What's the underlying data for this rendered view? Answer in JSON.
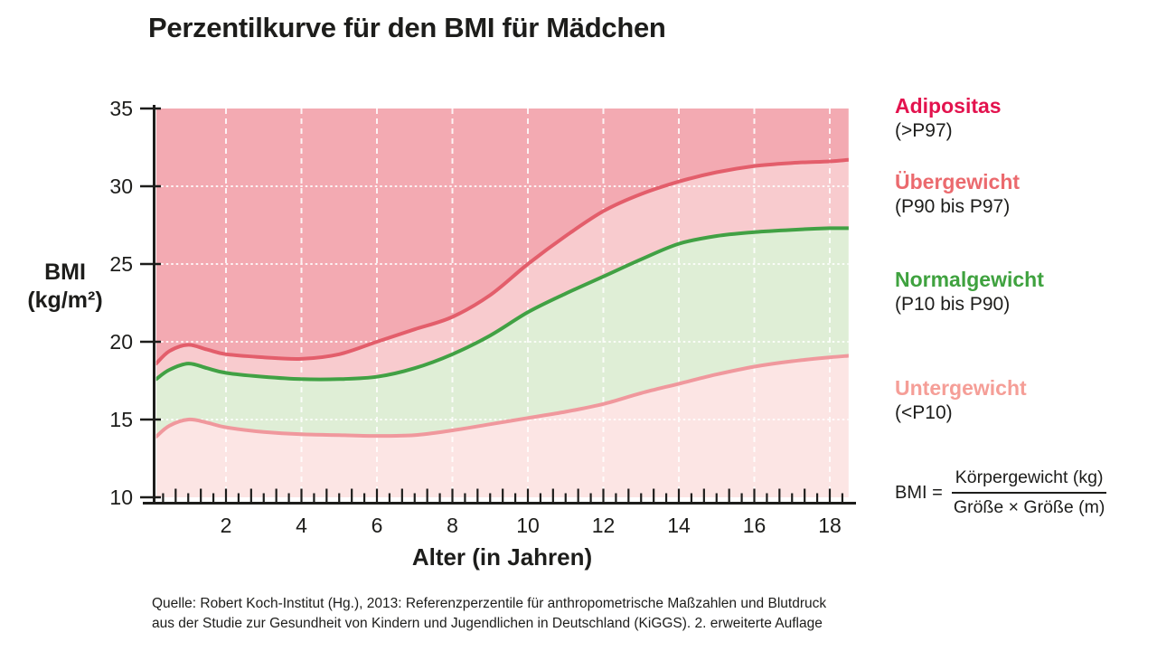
{
  "title": "Perzentilkurve für den BMI für Mädchen",
  "y_axis_label_line1": "BMI",
  "y_axis_label_line2": "(kg/m²)",
  "x_axis_label": "Alter (in Jahren)",
  "legend": {
    "items": [
      {
        "label": "Adipositas",
        "range": "(>P97)",
        "color": "#e3134e"
      },
      {
        "label": "Übergewicht",
        "range": "(P90 bis P97)",
        "color": "#eb6a6e"
      },
      {
        "label": "Normalgewicht",
        "range": "(P10 bis P90)",
        "color": "#3fa23f"
      },
      {
        "label": "Untergewicht",
        "range": "(<P10)",
        "color": "#f59e97"
      }
    ]
  },
  "formula": {
    "lhs": "BMI =",
    "numerator": "Körpergewicht (kg)",
    "denominator": "Größe × Größe (m)"
  },
  "source_line1": "Quelle: Robert Koch-Institut (Hg.), 2013: Referenzperzentile für anthropometrische Maßzahlen und Blutdruck",
  "source_line2": "aus der Studie zur Gesundheit von Kindern und Jugendlichen in Deutschland (KiGGS). 2. erweiterte Auflage",
  "chart_data": {
    "type": "area",
    "title": "Perzentilkurve für den BMI für Mädchen",
    "xlabel": "Alter (in Jahren)",
    "ylabel": "BMI (kg/m²)",
    "xlim": [
      0.15,
      18.5
    ],
    "ylim": [
      10,
      35
    ],
    "x_ticks": [
      2,
      4,
      6,
      8,
      10,
      12,
      14,
      16,
      18
    ],
    "y_ticks": [
      10,
      15,
      20,
      25,
      30,
      35
    ],
    "grid": {
      "vertical_at_years": [
        2,
        4,
        6,
        8,
        10,
        12,
        14,
        16,
        18
      ],
      "horizontal_at_bmi": [
        15,
        20,
        25,
        30
      ],
      "style": "white dashed"
    },
    "x": [
      0.15,
      0.5,
      1,
      1.5,
      2,
      3,
      4,
      5,
      6,
      7,
      8,
      9,
      10,
      11,
      12,
      13,
      14,
      15,
      16,
      17,
      18,
      18.5
    ],
    "series": [
      {
        "name": "P97",
        "color": "#e35e6b",
        "values": [
          18.6,
          19.4,
          19.8,
          19.5,
          19.2,
          19.0,
          18.9,
          19.2,
          20.0,
          20.8,
          21.6,
          23.0,
          25.0,
          26.8,
          28.4,
          29.5,
          30.3,
          30.9,
          31.3,
          31.5,
          31.6,
          31.7
        ]
      },
      {
        "name": "P90",
        "color": "#41a144",
        "values": [
          17.6,
          18.2,
          18.6,
          18.3,
          18.0,
          17.75,
          17.6,
          17.6,
          17.75,
          18.3,
          19.2,
          20.4,
          21.9,
          23.1,
          24.2,
          25.3,
          26.3,
          26.8,
          27.05,
          27.2,
          27.3,
          27.3
        ]
      },
      {
        "name": "P10",
        "color": "#f0989d",
        "values": [
          13.9,
          14.6,
          15.0,
          14.8,
          14.5,
          14.2,
          14.05,
          14.0,
          13.95,
          14.0,
          14.3,
          14.7,
          15.1,
          15.5,
          16.0,
          16.7,
          17.3,
          17.9,
          18.4,
          18.75,
          19.0,
          19.1
        ]
      }
    ],
    "bands": [
      {
        "name": "Adipositas (>P97)",
        "color": "#f3aab2"
      },
      {
        "name": "Übergewicht (P90 bis P97)",
        "color": "#f8cbce"
      },
      {
        "name": "Normalgewicht (P10 bis P90)",
        "color": "#dfeed6"
      },
      {
        "name": "Untergewicht (<P10)",
        "color": "#fce5e4"
      }
    ],
    "axis_color": "#1d1d1b"
  }
}
